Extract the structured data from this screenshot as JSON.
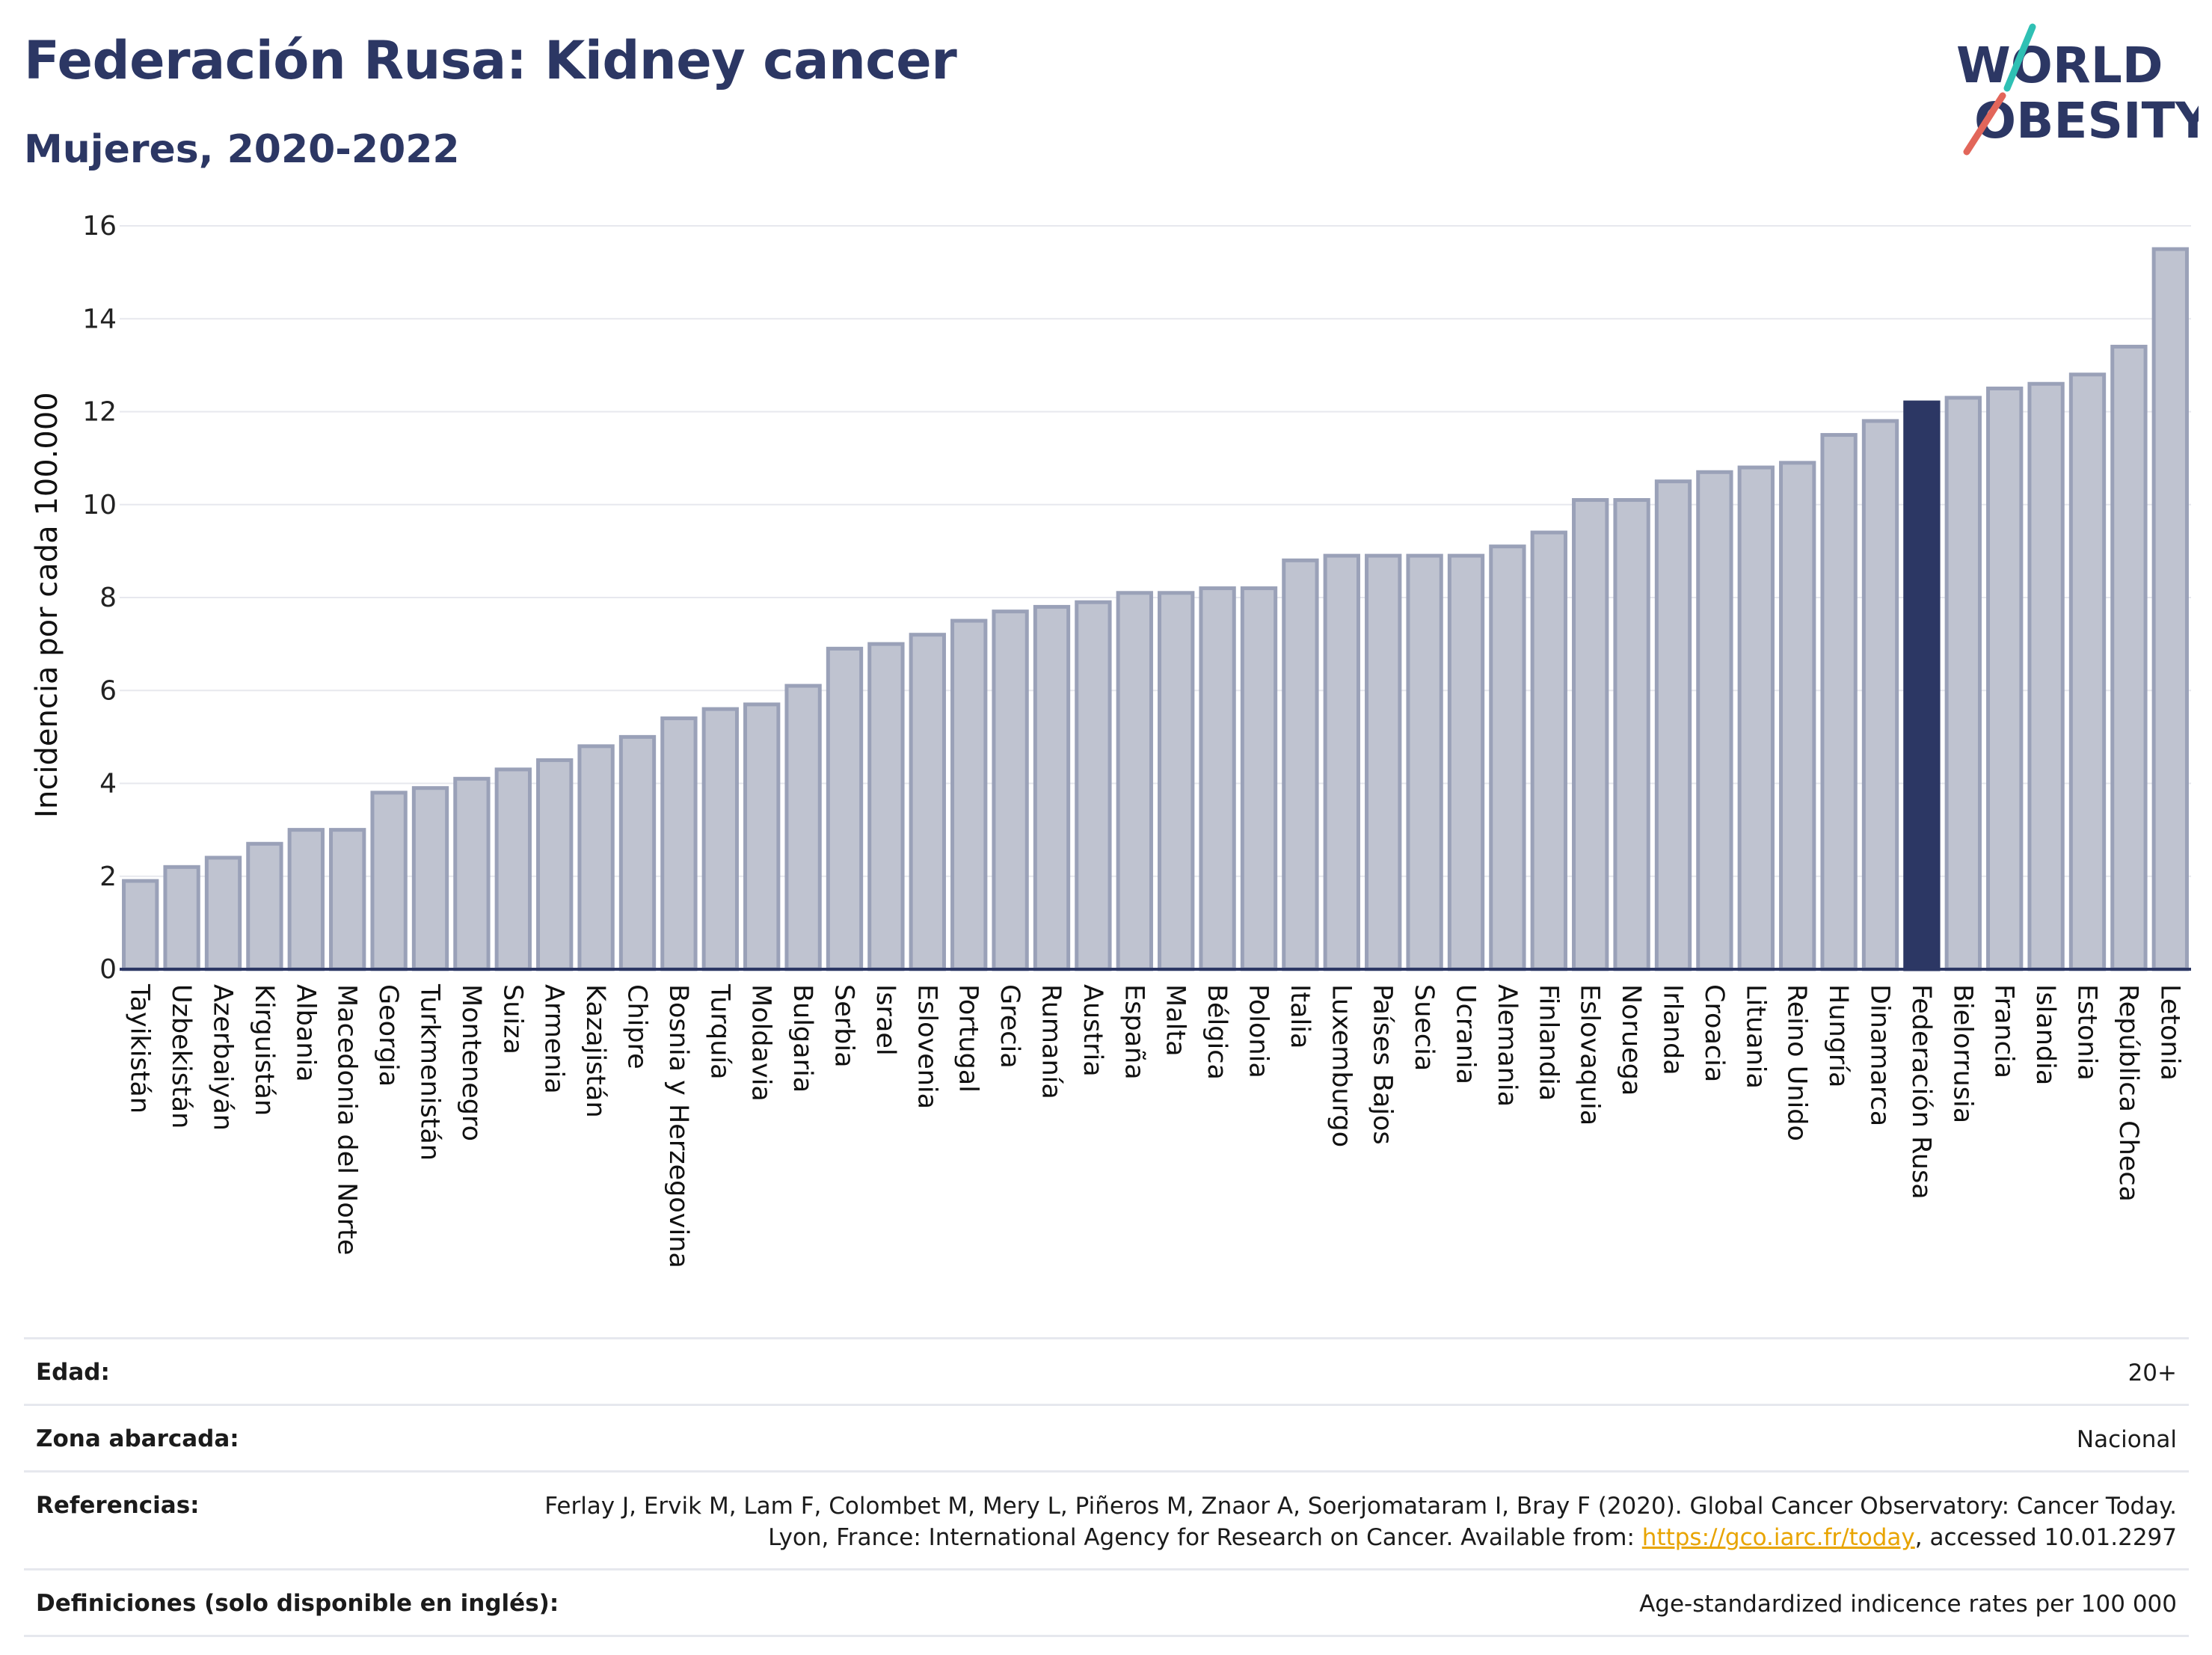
{
  "header": {
    "title": "Federación Rusa: Kidney cancer",
    "subtitle": "Mujeres, 2020-2022"
  },
  "logo": {
    "line1": "WORLD",
    "line2": "OBESITY",
    "accent_colors": [
      "#e2665a",
      "#2fc0b4"
    ]
  },
  "chart_data": {
    "type": "bar",
    "ylabel": "Incidencia por cada 100.000",
    "ylim": [
      0,
      16
    ],
    "yticks": [
      0,
      2,
      4,
      6,
      8,
      10,
      12,
      14,
      16
    ],
    "grid": true,
    "highlight": "Federación Rusa",
    "colors": {
      "bar": "#bfc3d0",
      "bar_stroke": "#9aa1b8",
      "highlight": "#2c3764"
    },
    "categories": [
      "Tayikistán",
      "Uzbekistán",
      "Azerbaiyán",
      "Kirguistán",
      "Albania",
      "Macedonia del Norte",
      "Georgia",
      "Turkmenistán",
      "Montenegro",
      "Suiza",
      "Armenia",
      "Kazajistán",
      "Chipre",
      "Bosnia y Herzegovina",
      "Turquía",
      "Moldavia",
      "Bulgaria",
      "Serbia",
      "Israel",
      "Eslovenia",
      "Portugal",
      "Grecia",
      "Rumanía",
      "Austria",
      "España",
      "Malta",
      "Bélgica",
      "Polonia",
      "Italia",
      "Luxemburgo",
      "Países Bajos",
      "Suecia",
      "Ucrania",
      "Alemania",
      "Finlandia",
      "Eslovaquia",
      "Noruega",
      "Irlanda",
      "Croacia",
      "Lituania",
      "Reino Unido",
      "Hungría",
      "Dinamarca",
      "Federación Rusa",
      "Bielorrusia",
      "Francia",
      "Islandia",
      "Estonia",
      "República Checa",
      "Letonia"
    ],
    "values": [
      1.9,
      2.2,
      2.4,
      2.7,
      3.0,
      3.0,
      3.8,
      3.9,
      4.1,
      4.3,
      4.5,
      4.8,
      5.0,
      5.4,
      5.6,
      5.7,
      6.1,
      6.9,
      7.0,
      7.2,
      7.5,
      7.7,
      7.8,
      7.9,
      8.1,
      8.1,
      8.2,
      8.2,
      8.8,
      8.9,
      8.9,
      8.9,
      8.9,
      9.1,
      9.4,
      10.1,
      10.1,
      10.5,
      10.7,
      10.8,
      10.9,
      11.5,
      11.8,
      12.2,
      12.3,
      12.5,
      12.6,
      12.8,
      13.4,
      15.5
    ]
  },
  "info": [
    {
      "key": "Edad:",
      "value": "20+"
    },
    {
      "key": "Zona abarcada:",
      "value": "Nacional"
    },
    {
      "key": "Referencias:",
      "value_pre": "Ferlay J, Ervik M, Lam F, Colombet M, Mery L, Piñeros M, Znaor A, Soerjomataram I, Bray F (2020). Global Cancer Observatory: Cancer Today. Lyon, France: International Agency for Research on Cancer. Available from: ",
      "link": "https://gco.iarc.fr/today",
      "value_post": ", accessed 10.01.2297"
    },
    {
      "key": "Definiciones (solo disponible en inglés):",
      "value": "Age-standardized indicence rates per 100 000"
    }
  ]
}
